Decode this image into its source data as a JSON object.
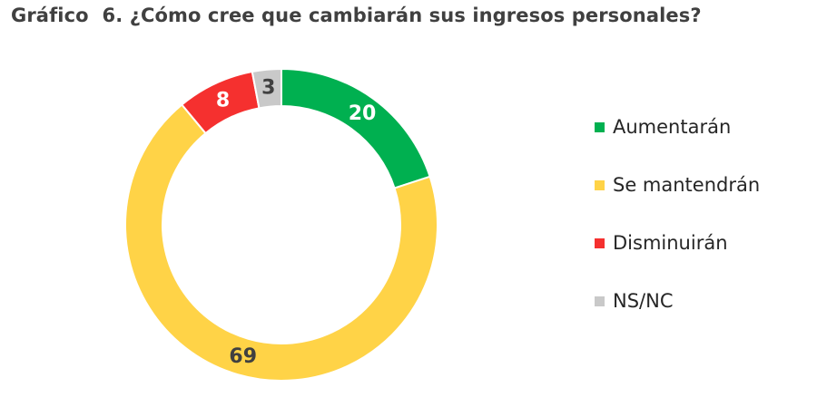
{
  "title": "Gráfico  6. ¿Cómo cree que cambiarán sus ingresos personales?",
  "chart_data": {
    "type": "pie",
    "title": "Gráfico  6. ¿Cómo cree que cambiarán sus ingresos personales?",
    "slices": [
      {
        "label": "Aumentarán",
        "value": 20,
        "display": "20",
        "color": "#00B050",
        "label_color": "#ffffff"
      },
      {
        "label": "Se mantendrán",
        "value": 69,
        "display": "69",
        "color": "#FFD347",
        "label_color": "#404040"
      },
      {
        "label": "Disminuirán",
        "value": 8,
        "display": "8",
        "color": "#F5302F",
        "label_color": "#ffffff"
      },
      {
        "label": "NS/NC",
        "value": 3,
        "display": "3",
        "color": "#C9C9C9",
        "label_color": "#404040"
      }
    ],
    "donut": true,
    "legend_position": "right"
  }
}
